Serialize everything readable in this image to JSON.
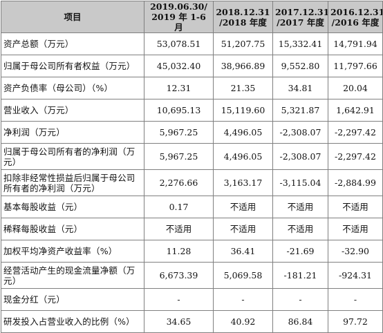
{
  "table": {
    "headers": [
      "项目",
      "2019.06.30/\n2019 年 1-6 月",
      "2018.12.31\n/2018 年度",
      "2017.12.31\n/2017 年度",
      "2016.12.31\n/2016 年度"
    ],
    "header_lines": [
      [
        "项目"
      ],
      [
        "2019.06.30/",
        "2019 年 1-6 月"
      ],
      [
        "2018.12.31",
        "/2018 年度"
      ],
      [
        "2017.12.31",
        "/2017 年度"
      ],
      [
        "2016.12.31",
        "/2016 年度"
      ]
    ],
    "rows": [
      {
        "label": "资产总额（万元）",
        "values": [
          "53,078.51",
          "51,207.75",
          "15,332.41",
          "14,791.94"
        ],
        "tall": false
      },
      {
        "label": "归属于母公司所有者权益（万元）",
        "values": [
          "45,032.40",
          "38,966.89",
          "9,552.80",
          "11,797.66"
        ],
        "tall": false
      },
      {
        "label": "资产负债率（母公司）（%）",
        "values": [
          "12.31",
          "21.35",
          "34.81",
          "20.04"
        ],
        "tall": false
      },
      {
        "label": "营业收入（万元）",
        "values": [
          "10,695.13",
          "15,119.60",
          "5,321.87",
          "1,642.91"
        ],
        "tall": false
      },
      {
        "label": "净利润（万元）",
        "values": [
          "5,967.25",
          "4,496.05",
          "-2,308.07",
          "-2,297.42"
        ],
        "tall": false
      },
      {
        "label": "归属于母公司所有者的净利润（万元）",
        "values": [
          "5,967.25",
          "4,496.05",
          "-2,308.07",
          "-2,297.42"
        ],
        "tall": true
      },
      {
        "label": "扣除非经常性损益后归属于母公司所有者的净利润（万元）",
        "values": [
          "2,276.66",
          "3,163.17",
          "-3,115.04",
          "-2,884.99"
        ],
        "tall": true
      },
      {
        "label": "基本每股收益（元）",
        "values": [
          "0.17",
          "不适用",
          "不适用",
          "不适用"
        ],
        "tall": false
      },
      {
        "label": "稀释每股收益（元）",
        "values": [
          "不适用",
          "不适用",
          "不适用",
          "不适用"
        ],
        "tall": false
      },
      {
        "label": "加权平均净资产收益率（%）",
        "values": [
          "11.28",
          "36.41",
          "-21.69",
          "-32.90"
        ],
        "tall": false
      },
      {
        "label": "经营活动产生的现金流量净额（万元）",
        "values": [
          "6,673.39",
          "5,069.58",
          "-181.21",
          "-924.31"
        ],
        "tall": true
      },
      {
        "label": "现金分红（元）",
        "values": [
          "-",
          "-",
          "-",
          "-"
        ],
        "tall": false
      },
      {
        "label": "研发投入占营业收入的比例（%）",
        "values": [
          "34.65",
          "40.92",
          "86.84",
          "97.72"
        ],
        "tall": false
      }
    ]
  }
}
